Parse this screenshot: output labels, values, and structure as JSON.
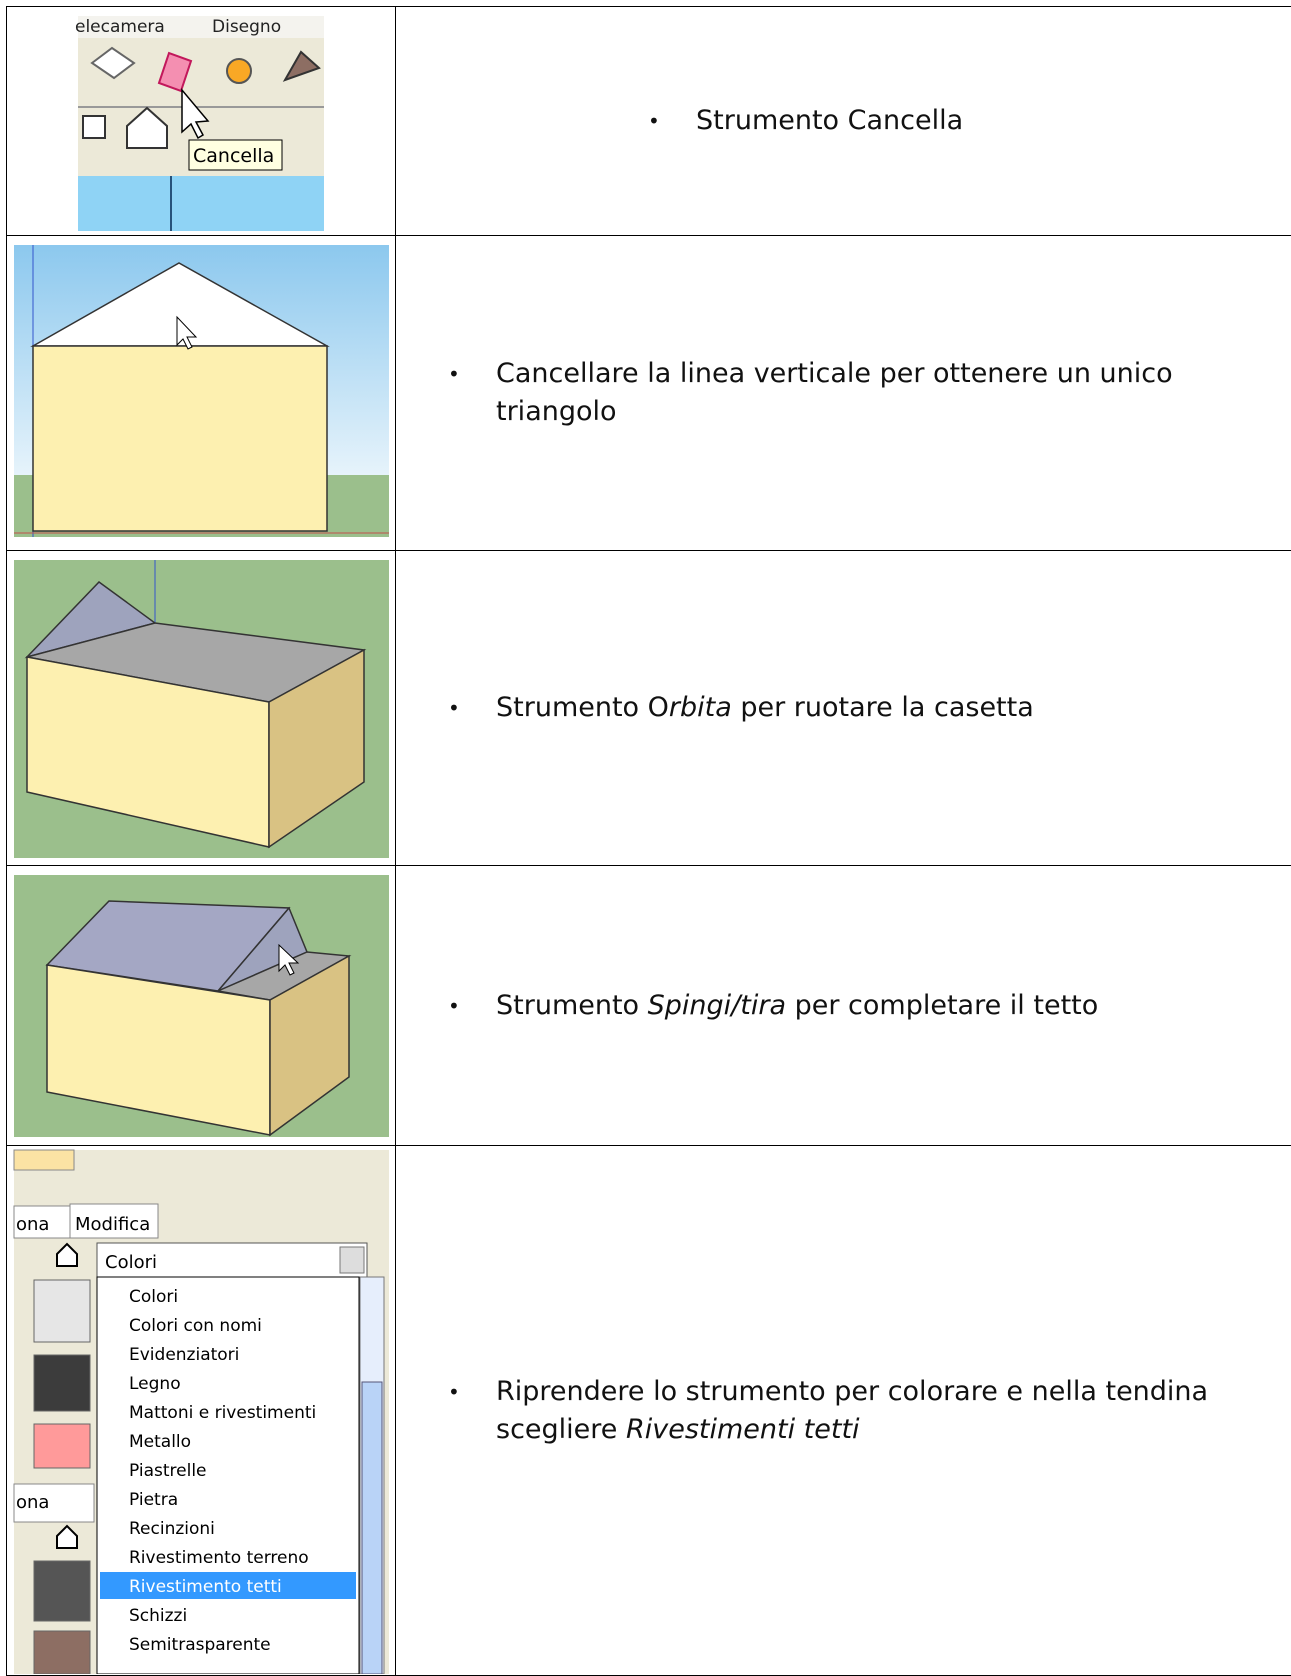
{
  "table": {
    "rows": [
      {
        "screenshot": {
          "menu": [
            "elecamera",
            "Disegno"
          ],
          "tooltip": "Cancella"
        },
        "text": [
          {
            "text": "Strumento Cancella",
            "italic": false
          }
        ]
      },
      {
        "text": [
          {
            "text": "Cancellare la linea verticale per ottenere un unico triangolo",
            "italic": false
          }
        ]
      },
      {
        "text": [
          {
            "text": "Strumento O",
            "italic": false
          },
          {
            "text": "rbita",
            "italic": true
          },
          {
            "text": " per ruotare la casetta",
            "italic": false
          }
        ]
      },
      {
        "text": [
          {
            "text": "Strumento ",
            "italic": false
          },
          {
            "text": "Spingi/tira",
            "italic": true
          },
          {
            "text": " per completare il tetto",
            "italic": false
          }
        ]
      },
      {
        "screenshot": {
          "tabs": [
            "ona",
            "Modifica"
          ],
          "dropdown": "Colori",
          "second_tab": "ona",
          "list": [
            "Colori",
            "Colori con nomi",
            "Evidenziatori",
            "Legno",
            "Mattoni e rivestimenti",
            "Metallo",
            "Piastrelle",
            "Pietra",
            "Recinzioni",
            "Rivestimento terreno",
            "Rivestimento tetti",
            "Schizzi",
            "Semitrasparente"
          ]
        },
        "text": [
          {
            "text": "Riprendere lo strumento per colorare e nella tendina scegliere ",
            "italic": false
          },
          {
            "text": "Rivestimenti tetti",
            "italic": true
          }
        ]
      }
    ]
  }
}
